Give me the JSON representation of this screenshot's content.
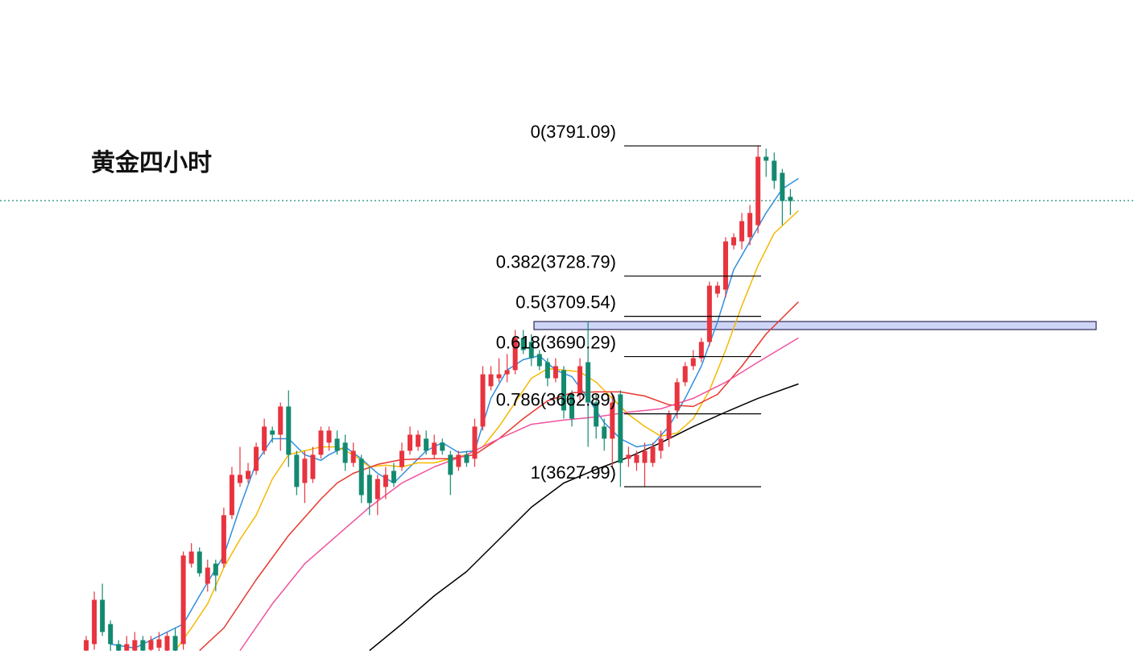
{
  "chart_data": {
    "type": "candlestick",
    "title": "黄金四小时",
    "ylim": [
      3549.4,
      3860.9
    ],
    "xlim": [
      -10.65,
      129.45
    ],
    "up_color": "#e8343f",
    "down_color": "#138a70",
    "candles": [
      [
        3549.6,
        3554.6,
        3556.6,
        3548.0
      ],
      [
        3552.7,
        3573.9,
        3577.8,
        3550.0
      ],
      [
        3573.9,
        3558.5,
        3581.6,
        3556.6
      ],
      [
        3562.3,
        3552.7,
        3564.0,
        3549.0
      ],
      [
        3552.7,
        3549.6,
        3554.6,
        3546.0
      ],
      [
        3549.6,
        3552.7,
        3556.6,
        3546.0
      ],
      [
        3549.6,
        3554.6,
        3558.5,
        3547.0
      ],
      [
        3554.6,
        3549.6,
        3556.6,
        3546.0
      ],
      [
        3550.0,
        3554.6,
        3556.6,
        3547.0
      ],
      [
        3551.0,
        3555.0,
        3558.5,
        3548.0
      ],
      [
        3549.6,
        3556.6,
        3558.5,
        3547.0
      ],
      [
        3556.6,
        3549.6,
        3560.4,
        3546.0
      ],
      [
        3552.7,
        3595.1,
        3597.0,
        3550.0
      ],
      [
        3591.2,
        3597.0,
        3601.0,
        3589.3
      ],
      [
        3597.0,
        3586.6,
        3599.0,
        3585.0
      ],
      [
        3581.6,
        3589.3,
        3593.1,
        3577.8
      ],
      [
        3591.2,
        3585.5,
        3593.1,
        3578.0
      ],
      [
        3591.2,
        3614.4,
        3618.0,
        3589.3
      ],
      [
        3614.4,
        3633.7,
        3637.5,
        3612.5
      ],
      [
        3629.8,
        3633.7,
        3647.1,
        3627.9
      ],
      [
        3631.7,
        3635.6,
        3639.4,
        3629.8
      ],
      [
        3635.6,
        3647.1,
        3649.1,
        3633.7
      ],
      [
        3645.2,
        3656.8,
        3660.6,
        3643.3
      ],
      [
        3654.9,
        3652.9,
        3656.8,
        3649.1
      ],
      [
        3652.9,
        3666.4,
        3668.3,
        3645.2
      ],
      [
        3666.4,
        3643.3,
        3674.1,
        3637.5
      ],
      [
        3643.3,
        3627.9,
        3645.2,
        3624.0
      ],
      [
        3629.8,
        3641.4,
        3645.2,
        3620.2
      ],
      [
        3631.7,
        3643.3,
        3647.1,
        3629.8
      ],
      [
        3643.3,
        3654.9,
        3656.8,
        3641.4
      ],
      [
        3649.1,
        3654.9,
        3656.8,
        3645.2
      ],
      [
        3651.0,
        3645.2,
        3654.9,
        3643.3
      ],
      [
        3649.1,
        3639.4,
        3652.9,
        3635.6
      ],
      [
        3639.4,
        3645.2,
        3649.1,
        3637.5
      ],
      [
        3641.4,
        3624.0,
        3643.3,
        3620.2
      ],
      [
        3633.7,
        3620.2,
        3637.5,
        3614.4
      ],
      [
        3622.1,
        3631.7,
        3633.7,
        3614.4
      ],
      [
        3627.9,
        3633.7,
        3637.5,
        3622.1
      ],
      [
        3635.6,
        3629.8,
        3639.4,
        3627.9
      ],
      [
        3637.5,
        3645.2,
        3649.1,
        3635.6
      ],
      [
        3645.2,
        3652.9,
        3656.8,
        3643.3
      ],
      [
        3647.1,
        3652.9,
        3654.9,
        3645.2
      ],
      [
        3651.0,
        3645.2,
        3654.9,
        3643.3
      ],
      [
        3643.3,
        3649.1,
        3652.9,
        3641.4
      ],
      [
        3649.1,
        3645.2,
        3651.0,
        3643.3
      ],
      [
        3643.3,
        3633.7,
        3645.2,
        3624.0
      ],
      [
        3637.5,
        3643.3,
        3645.2,
        3635.6
      ],
      [
        3643.3,
        3639.4,
        3645.2,
        3637.5
      ],
      [
        3641.4,
        3656.8,
        3660.6,
        3637.5
      ],
      [
        3656.8,
        3681.8,
        3685.7,
        3654.9
      ],
      [
        3676.1,
        3681.8,
        3685.7,
        3674.1
      ],
      [
        3679.9,
        3681.8,
        3689.5,
        3678.0
      ],
      [
        3681.8,
        3683.8,
        3691.5,
        3678.0
      ],
      [
        3683.8,
        3699.2,
        3703.0,
        3681.8
      ],
      [
        3699.2,
        3693.4,
        3703.0,
        3691.5
      ],
      [
        3697.3,
        3689.5,
        3701.0,
        3685.7
      ],
      [
        3691.5,
        3685.7,
        3693.4,
        3683.8
      ],
      [
        3687.6,
        3679.9,
        3689.5,
        3676.1
      ],
      [
        3679.9,
        3685.7,
        3689.5,
        3678.0
      ],
      [
        3683.8,
        3664.5,
        3685.7,
        3660.6
      ],
      [
        3672.2,
        3660.6,
        3674.1,
        3656.8
      ],
      [
        3672.2,
        3685.7,
        3689.5,
        3668.3
      ],
      [
        3687.6,
        3668.3,
        3707.0,
        3647.1
      ],
      [
        3668.3,
        3656.8,
        3672.2,
        3651.0
      ],
      [
        3656.8,
        3651.0,
        3660.6,
        3645.2
      ],
      [
        3651.0,
        3668.3,
        3672.2,
        3637.5
      ],
      [
        3672.2,
        3639.4,
        3674.1,
        3627.9
      ],
      [
        3641.4,
        3643.3,
        3647.1,
        3637.5
      ],
      [
        3639.4,
        3643.3,
        3645.2,
        3635.6
      ],
      [
        3639.4,
        3645.2,
        3649.1,
        3627.9
      ],
      [
        3639.4,
        3647.1,
        3649.1,
        3637.5
      ],
      [
        3645.2,
        3651.0,
        3654.9,
        3641.4
      ],
      [
        3651.0,
        3662.6,
        3664.5,
        3647.1
      ],
      [
        3664.5,
        3678.0,
        3679.9,
        3660.6
      ],
      [
        3678.0,
        3685.7,
        3687.6,
        3676.1
      ],
      [
        3685.7,
        3689.5,
        3693.4,
        3683.8
      ],
      [
        3689.5,
        3697.3,
        3699.2,
        3687.6
      ],
      [
        3697.3,
        3724.2,
        3726.1,
        3695.3
      ],
      [
        3720.4,
        3724.2,
        3726.1,
        3718.5
      ],
      [
        3722.3,
        3745.4,
        3747.4,
        3718.5
      ],
      [
        3743.5,
        3747.4,
        3749.3,
        3741.6
      ],
      [
        3745.4,
        3755.1,
        3759.0,
        3741.6
      ],
      [
        3747.4,
        3759.0,
        3762.8,
        3743.5
      ],
      [
        3753.2,
        3785.9,
        3791.09,
        3749.3
      ],
      [
        3785.9,
        3784.0,
        3789.8,
        3776.3
      ],
      [
        3784.0,
        3774.4,
        3787.9,
        3770.5
      ],
      [
        3778.2,
        3764.7,
        3780.1,
        3753.2
      ],
      [
        3766.7,
        3764.7,
        3770.5,
        3758.0
      ]
    ],
    "lines": [
      {
        "color": "#2f8fe0",
        "x": [
          3,
          6,
          12,
          14,
          17,
          19,
          21,
          23,
          25,
          27,
          29,
          30,
          32,
          34,
          36,
          38,
          40,
          42,
          44,
          46,
          48,
          50,
          52,
          54,
          56,
          58,
          60,
          62,
          64,
          66,
          68,
          70,
          72,
          74,
          76,
          78,
          80,
          82,
          84,
          86,
          88
        ],
        "values": [
          3552.7,
          3550.8,
          3562.3,
          3575.8,
          3595.1,
          3618.2,
          3639.4,
          3651.0,
          3651.0,
          3643.3,
          3640.6,
          3643.3,
          3647.1,
          3641.4,
          3634.4,
          3629.8,
          3637.5,
          3645.2,
          3649.1,
          3644.4,
          3645.2,
          3670.3,
          3683.8,
          3688.8,
          3690.7,
          3683.8,
          3680.7,
          3670.3,
          3658.7,
          3651.0,
          3647.1,
          3648.3,
          3656.8,
          3670.3,
          3685.7,
          3706.9,
          3731.9,
          3745.4,
          3759.0,
          3770.5,
          3775.5
        ]
      },
      {
        "color": "#f5b800",
        "x": [
          11,
          13,
          15,
          17,
          19,
          21,
          23,
          25,
          27,
          29,
          31,
          33,
          35,
          37,
          39,
          41,
          43,
          45,
          47,
          49,
          51,
          53,
          55,
          57,
          59,
          61,
          63,
          65,
          67,
          69,
          71,
          73,
          75,
          77,
          79,
          81,
          83,
          85,
          88
        ],
        "values": [
          3549.6,
          3560.4,
          3572.0,
          3589.3,
          3602.8,
          3614.4,
          3631.7,
          3643.3,
          3645.2,
          3647.1,
          3647.1,
          3643.3,
          3637.5,
          3638.3,
          3637.5,
          3639.4,
          3639.4,
          3641.4,
          3643.3,
          3647.1,
          3656.8,
          3668.3,
          3679.9,
          3684.5,
          3683.8,
          3683.0,
          3678.0,
          3670.3,
          3662.6,
          3656.8,
          3652.2,
          3653.7,
          3660.6,
          3674.1,
          3693.4,
          3714.6,
          3733.9,
          3749.3,
          3760.1
        ]
      },
      {
        "color": "#e8382e",
        "x": [
          14,
          17,
          21,
          25,
          29,
          31,
          33,
          36,
          39,
          42,
          45,
          48,
          51,
          54,
          57,
          60,
          63,
          66,
          69,
          72,
          75,
          78,
          81,
          84,
          88
        ],
        "values": [
          3549.6,
          3560.4,
          3583.5,
          3604.7,
          3622.1,
          3629.8,
          3634.4,
          3638.7,
          3641.0,
          3641.4,
          3641.4,
          3643.3,
          3651.0,
          3660.6,
          3669.1,
          3673.0,
          3673.4,
          3673.4,
          3671.4,
          3667.2,
          3666.4,
          3672.2,
          3685.7,
          3701.1,
          3716.5
        ]
      },
      {
        "color": "#f0539e",
        "x": [
          19,
          23,
          27,
          31,
          35,
          39,
          43,
          47,
          51,
          55,
          59,
          63,
          67,
          71,
          75,
          79,
          83,
          88
        ],
        "values": [
          3549.6,
          3572.0,
          3591.2,
          3604.7,
          3618.2,
          3629.8,
          3637.5,
          3643.3,
          3651.0,
          3657.9,
          3659.9,
          3661.4,
          3663.7,
          3665.3,
          3670.3,
          3678.0,
          3687.6,
          3699.2
        ]
      },
      {
        "color": "#000000",
        "x": [
          35,
          39,
          43,
          47,
          51,
          55,
          59,
          63,
          67,
          71,
          75,
          79,
          83,
          88
        ],
        "values": [
          3549.6,
          3562.3,
          3575.8,
          3587.4,
          3602.8,
          3618.2,
          3629.8,
          3636.3,
          3642.1,
          3649.1,
          3656.8,
          3663.7,
          3670.3,
          3677.2
        ]
      }
    ],
    "fib_levels": [
      {
        "value": 3791.09,
        "label": "0(3791.09)"
      },
      {
        "value": 3728.79,
        "label": "0.382(3728.79)"
      },
      {
        "value": 3709.54,
        "label": "0.5(3709.54)"
      },
      {
        "value": 3690.29,
        "label": "0.618(3690.29)"
      },
      {
        "value": 3662.89,
        "label": "0.786(3662.89)"
      },
      {
        "value": 3627.99,
        "label": "1(3627.99)"
      }
    ],
    "zone": [
      3703.2,
      3707.05
    ],
    "price_line": 3764.9,
    "price_line_color": "#1a8f7a"
  }
}
